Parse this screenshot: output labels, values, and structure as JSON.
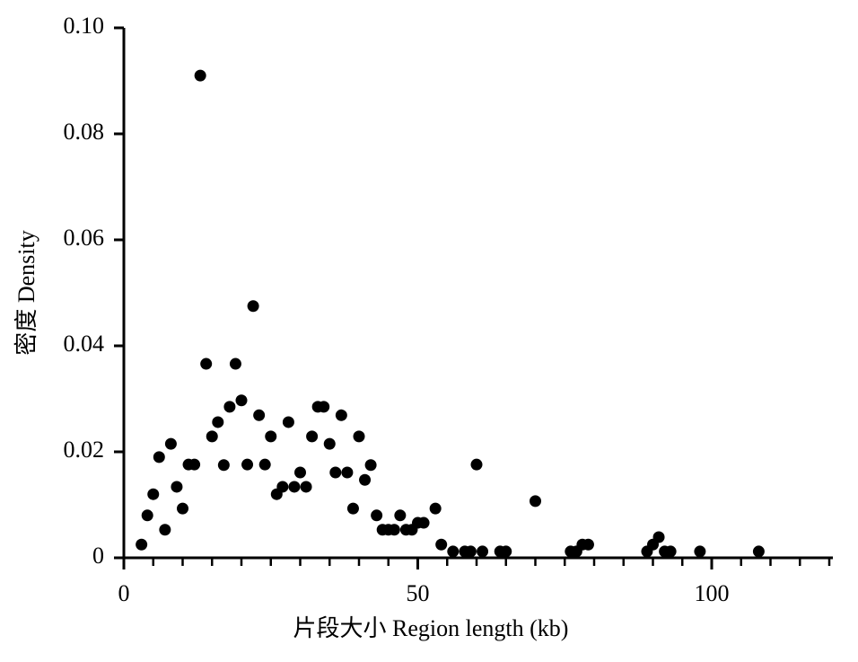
{
  "chart_data": {
    "type": "scatter",
    "x_label": "片段大小 Region length (kb)",
    "y_label": "密度 Density",
    "color": "#000000",
    "x": [
      3,
      4,
      5,
      6,
      7,
      8,
      9,
      10,
      11,
      12,
      13,
      14,
      15,
      16,
      17,
      18,
      19,
      20,
      21,
      22,
      23,
      24,
      25,
      26,
      27,
      28,
      29,
      30,
      31,
      32,
      33,
      34,
      35,
      36,
      37,
      38,
      39,
      40,
      41,
      42,
      43,
      44,
      45,
      46,
      47,
      48,
      49,
      50,
      51,
      53,
      54,
      56,
      58,
      59,
      60,
      61,
      64,
      65,
      70,
      76,
      77,
      78,
      79,
      89,
      90,
      91,
      92,
      93,
      98,
      108
    ],
    "values": [
      0.0025,
      0.008,
      0.012,
      0.019,
      0.0053,
      0.0215,
      0.0134,
      0.0093,
      0.0176,
      0.0176,
      0.091,
      0.0366,
      0.0229,
      0.0256,
      0.0175,
      0.0285,
      0.0366,
      0.0297,
      0.0176,
      0.0475,
      0.0269,
      0.0176,
      0.0229,
      0.012,
      0.0134,
      0.0256,
      0.0134,
      0.0161,
      0.0134,
      0.0229,
      0.0285,
      0.0285,
      0.0215,
      0.0161,
      0.0269,
      0.0161,
      0.0093,
      0.0229,
      0.0147,
      0.0175,
      0.008,
      0.0053,
      0.0053,
      0.0053,
      0.008,
      0.0053,
      0.0053,
      0.0066,
      0.0066,
      0.0093,
      0.0025,
      0.0012,
      0.0012,
      0.0012,
      0.0176,
      0.0012,
      0.0012,
      0.0012,
      0.0107,
      0.0012,
      0.0012,
      0.0025,
      0.0025,
      0.0012,
      0.0025,
      0.0039,
      0.0012,
      0.0012,
      0.0012,
      0.0012
    ],
    "xlim": [
      0,
      120
    ],
    "xticks": [
      0,
      50,
      100
    ],
    "x_minor_ticks": [
      5,
      10,
      15,
      20,
      25,
      30,
      35,
      40,
      45,
      55,
      60,
      65,
      70,
      75,
      80,
      85,
      90,
      95,
      105,
      110,
      115,
      120
    ],
    "ylim": [
      0,
      0.1
    ],
    "yticks": [
      0,
      0.02,
      0.04,
      0.06,
      0.08,
      {
        "value": 0.1,
        "label": "0.10"
      }
    ]
  }
}
